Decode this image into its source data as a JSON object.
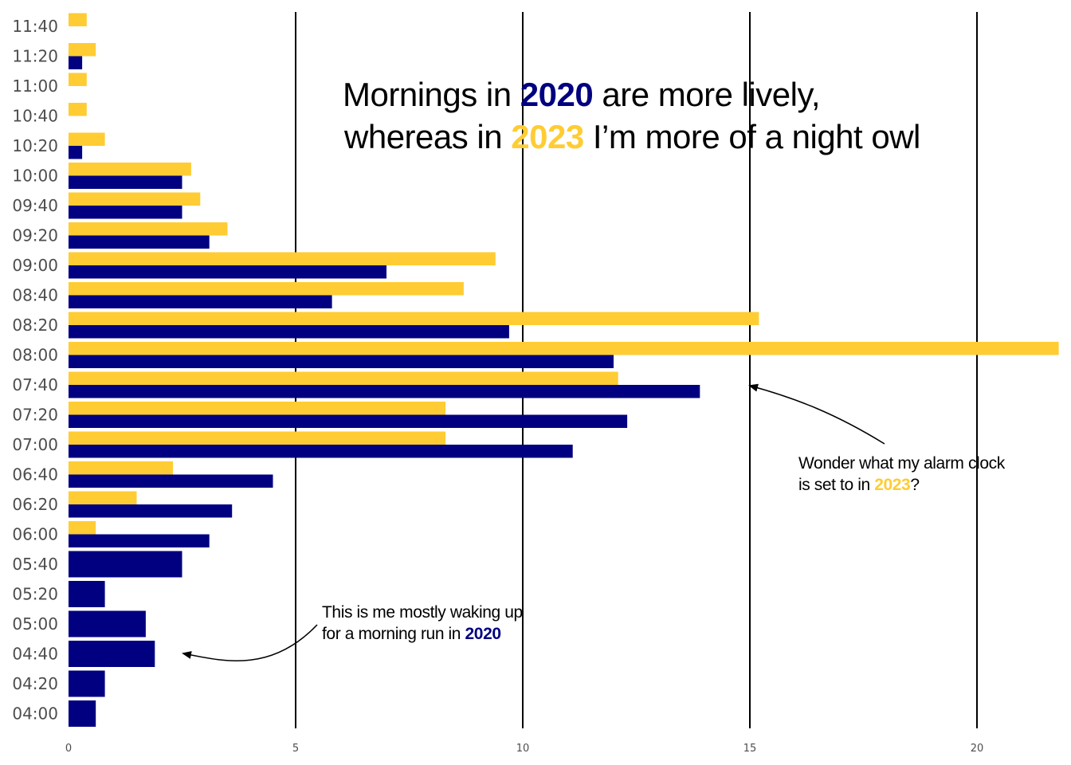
{
  "chart_data": {
    "type": "bar",
    "orientation": "horizontal",
    "categories": [
      "04:00",
      "04:20",
      "04:40",
      "05:00",
      "05:20",
      "05:40",
      "06:00",
      "06:20",
      "06:40",
      "07:00",
      "07:20",
      "07:40",
      "08:00",
      "08:20",
      "08:40",
      "09:00",
      "09:20",
      "09:40",
      "10:00",
      "10:20",
      "10:40",
      "11:00",
      "11:20",
      "11:40"
    ],
    "series": [
      {
        "year": "2020",
        "color": "#000080",
        "values": [
          0.6,
          0.8,
          1.9,
          1.7,
          0.8,
          2.5,
          3.1,
          3.6,
          4.5,
          11.1,
          12.3,
          13.9,
          12.0,
          9.7,
          5.8,
          7.0,
          3.1,
          2.5,
          2.5,
          0.3,
          0,
          0,
          0.3,
          0
        ]
      },
      {
        "year": "2023",
        "color": "#FFCC33",
        "values": [
          0,
          0,
          0,
          0,
          0,
          0,
          0.6,
          1.5,
          2.3,
          8.3,
          8.3,
          12.1,
          21.8,
          15.2,
          8.7,
          9.4,
          3.5,
          2.9,
          2.7,
          0.8,
          0.4,
          0.4,
          0.6,
          0.4
        ]
      }
    ],
    "x_ticks": [
      "0",
      "5",
      "10",
      "15",
      "20"
    ],
    "xlim": [
      0,
      21.8
    ],
    "xlabel": "",
    "ylabel": "",
    "grid": "vertical major lines at 5, 10, 15, 20",
    "legend": "none"
  },
  "title": {
    "line1": {
      "pre": "Mornings in ",
      "year": "2020",
      "post": " are more lively,"
    },
    "line2": {
      "pre": "whereas in ",
      "year": "2023",
      "post": "I’m more of a night owl"
    }
  },
  "annotations": [
    {
      "line1": "Wonder what my alarm clock",
      "line2_pre": "is set to in ",
      "year": "2023",
      "line2_post": "?"
    },
    {
      "line1": "This is me mostly waking up",
      "line2_pre": "for a morning run in ",
      "year": "2020",
      "line2_post": ""
    }
  ],
  "colors": {
    "2020": "#000080",
    "2023": "#FFCC33"
  }
}
